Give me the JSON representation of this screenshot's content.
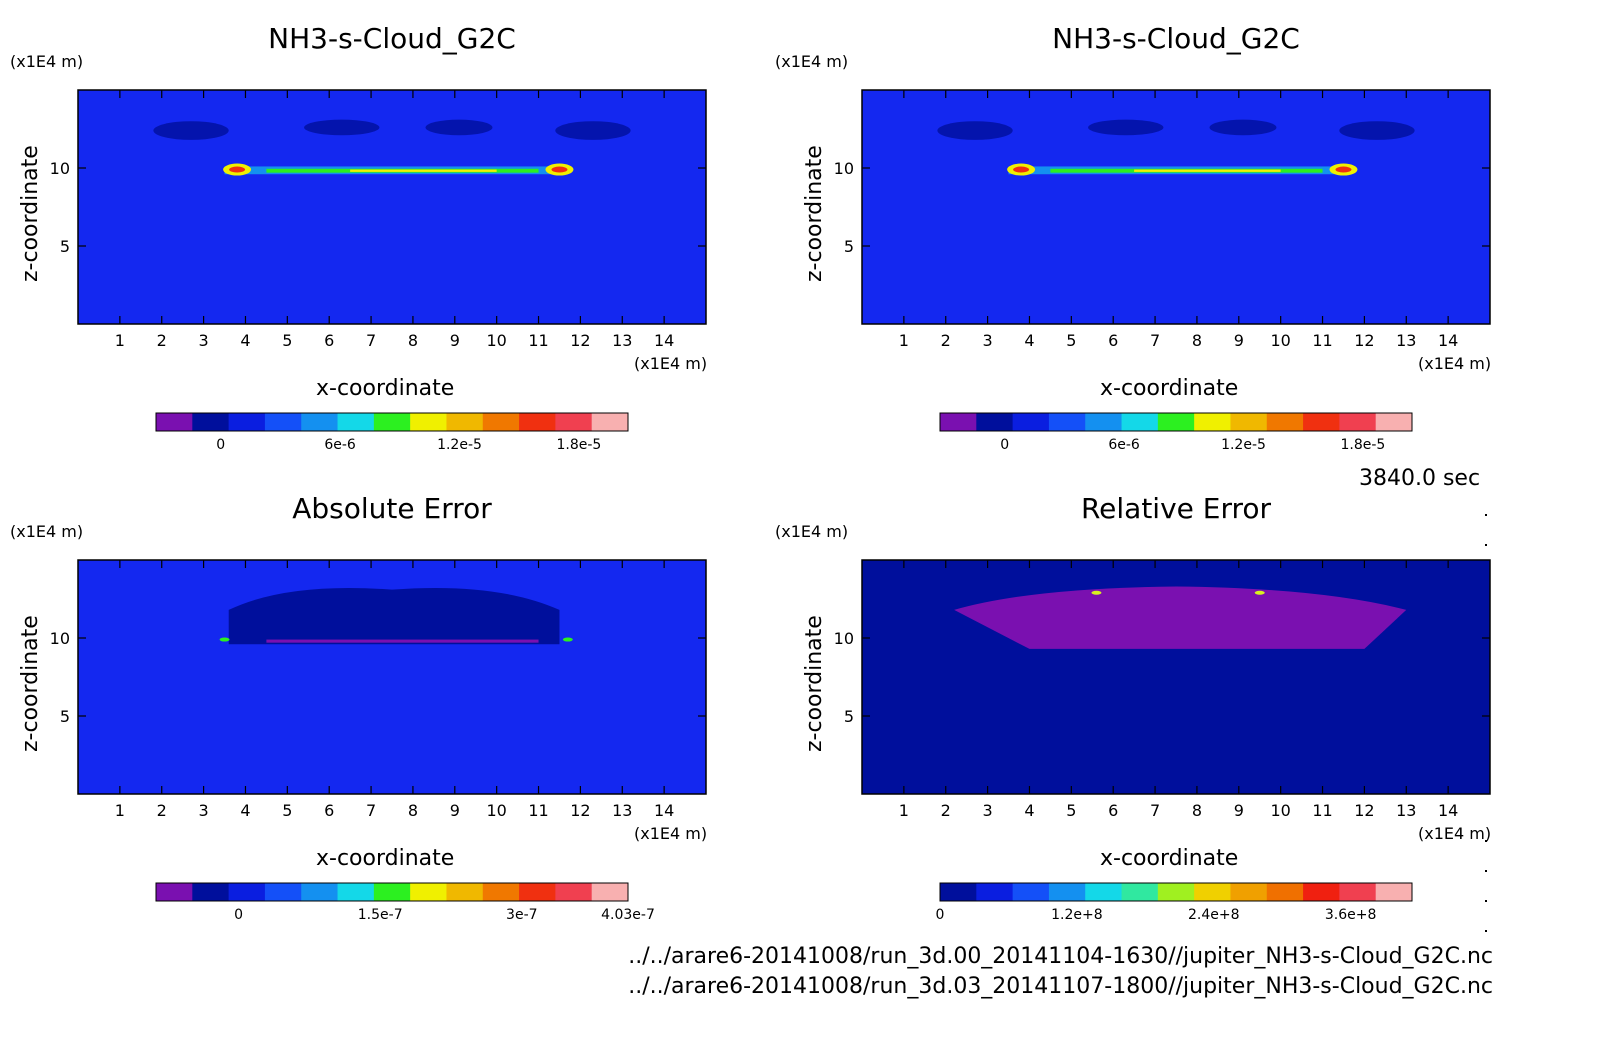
{
  "time_label": "3840.0 sec",
  "footer": [
    "../../arare6-20141008/run_3d.00_20141104-1630//jupiter_NH3-s-Cloud_G2C.nc",
    "../../arare6-20141008/run_3d.03_20141107-1800//jupiter_NH3-s-Cloud_G2C.nc"
  ],
  "chart_data": [
    {
      "type": "heatmap",
      "title": "NH3-s-Cloud_G2C",
      "xlabel": "x-coordinate",
      "ylabel": "z-coordinate",
      "xunit": "(x1E4 m)",
      "yunit": "(x1E4 m)",
      "xlim": [
        0,
        15
      ],
      "ylim": [
        0,
        15
      ],
      "xticks": [
        "1",
        "2",
        "3",
        "4",
        "5",
        "6",
        "7",
        "8",
        "9",
        "10",
        "11",
        "12",
        "13",
        "14"
      ],
      "yticks": [
        "5",
        "10"
      ],
      "background": "#1428f0",
      "colorbar": {
        "colors": [
          "#7a10b0",
          "#000f9c",
          "#0a1ee0",
          "#1450f8",
          "#1490f0",
          "#14d8e8",
          "#2cf020",
          "#f0f000",
          "#f0b800",
          "#f07800",
          "#f03010",
          "#f04050",
          "#f8b0b0"
        ],
        "labels": [
          {
            "v": "0",
            "f": 0.137
          },
          {
            "v": "6e-6",
            "f": 0.39
          },
          {
            "v": "1.2e-5",
            "f": 0.643
          },
          {
            "v": "1.8e-5",
            "f": 0.896
          }
        ]
      }
    },
    {
      "type": "heatmap",
      "title": "NH3-s-Cloud_G2C",
      "xlabel": "x-coordinate",
      "ylabel": "z-coordinate",
      "xunit": "(x1E4 m)",
      "yunit": "(x1E4 m)",
      "xlim": [
        0,
        15
      ],
      "ylim": [
        0,
        15
      ],
      "xticks": [
        "1",
        "2",
        "3",
        "4",
        "5",
        "6",
        "7",
        "8",
        "9",
        "10",
        "11",
        "12",
        "13",
        "14"
      ],
      "yticks": [
        "5",
        "10"
      ],
      "background": "#1428f0",
      "colorbar": {
        "colors": [
          "#7a10b0",
          "#000f9c",
          "#0a1ee0",
          "#1450f8",
          "#1490f0",
          "#14d8e8",
          "#2cf020",
          "#f0f000",
          "#f0b800",
          "#f07800",
          "#f03010",
          "#f04050",
          "#f8b0b0"
        ],
        "labels": [
          {
            "v": "0",
            "f": 0.137
          },
          {
            "v": "6e-6",
            "f": 0.39
          },
          {
            "v": "1.2e-5",
            "f": 0.643
          },
          {
            "v": "1.8e-5",
            "f": 0.896
          }
        ]
      }
    },
    {
      "type": "heatmap",
      "title": "Absolute Error",
      "xlabel": "x-coordinate",
      "ylabel": "z-coordinate",
      "xunit": "(x1E4 m)",
      "yunit": "(x1E4 m)",
      "xlim": [
        0,
        15
      ],
      "ylim": [
        0,
        15
      ],
      "xticks": [
        "1",
        "2",
        "3",
        "4",
        "5",
        "6",
        "7",
        "8",
        "9",
        "10",
        "11",
        "12",
        "13",
        "14"
      ],
      "yticks": [
        "5",
        "10"
      ],
      "background": "#1428f0",
      "colorbar": {
        "colors": [
          "#7a10b0",
          "#000f9c",
          "#0a1ee0",
          "#1450f8",
          "#1490f0",
          "#14d8e8",
          "#2cf020",
          "#f0f000",
          "#f0b800",
          "#f07800",
          "#f03010",
          "#f04050",
          "#f8b0b0"
        ],
        "labels": [
          {
            "v": "0",
            "f": 0.175
          },
          {
            "v": "1.5e-7",
            "f": 0.475
          },
          {
            "v": "3e-7",
            "f": 0.775
          },
          {
            "v": "4.03e-7",
            "f": 1.0
          }
        ]
      }
    },
    {
      "type": "heatmap",
      "title": "Relative Error",
      "xlabel": "x-coordinate",
      "ylabel": "z-coordinate",
      "xunit": "(x1E4 m)",
      "yunit": "(x1E4 m)",
      "xlim": [
        0,
        15
      ],
      "ylim": [
        0,
        15
      ],
      "xticks": [
        "1",
        "2",
        "3",
        "4",
        "5",
        "6",
        "7",
        "8",
        "9",
        "10",
        "11",
        "12",
        "13",
        "14"
      ],
      "yticks": [
        "5",
        "10"
      ],
      "background": "#000f9c",
      "colorbar": {
        "colors": [
          "#000f9c",
          "#0a1ee0",
          "#1450f8",
          "#1490f0",
          "#14d8e8",
          "#30e8a0",
          "#a0f020",
          "#f0d000",
          "#f0a000",
          "#f07000",
          "#f02010",
          "#f04050",
          "#f8b0b0"
        ],
        "labels": [
          {
            "v": "0",
            "f": 0.0
          },
          {
            "v": "1.2e+8",
            "f": 0.29
          },
          {
            "v": "2.4e+8",
            "f": 0.58
          },
          {
            "v": "3.6e+8",
            "f": 0.87
          }
        ]
      }
    }
  ]
}
